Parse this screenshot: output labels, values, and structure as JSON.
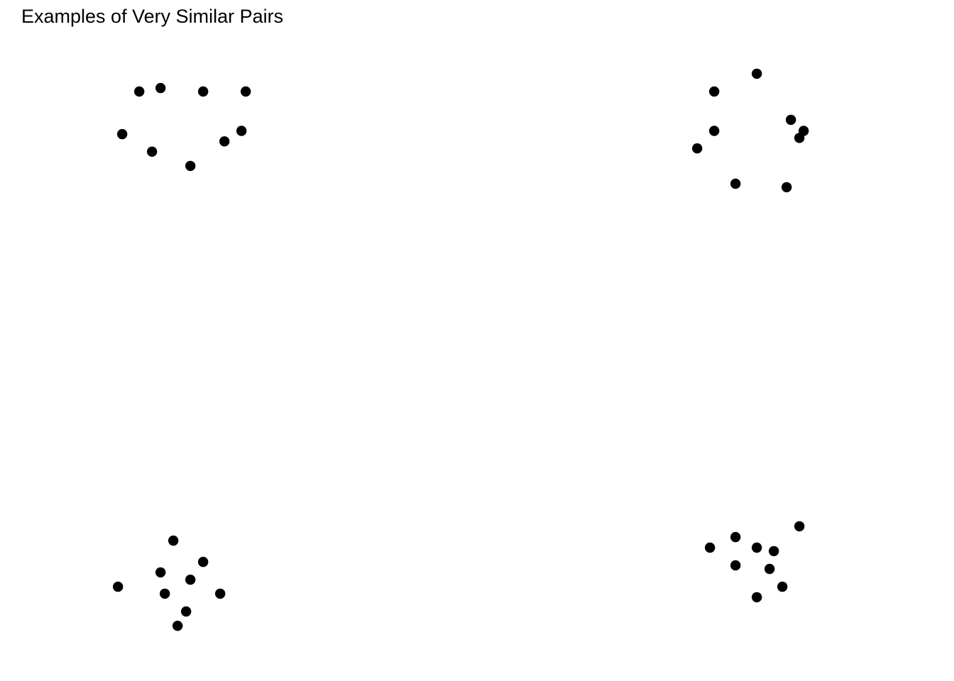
{
  "figure": {
    "title": "Examples of Very Similar Pairs"
  },
  "colors": {
    "background": "#ffffff",
    "point": "#000000",
    "text": "#000000"
  },
  "chart_data": [
    {
      "type": "scatter",
      "panel": "top-left",
      "grid": false,
      "axes_visible": false,
      "xlim": [
        0,
        100
      ],
      "ylim": [
        0,
        100
      ],
      "points": [
        {
          "x": 32.7,
          "y": 87.1
        },
        {
          "x": 37.7,
          "y": 88.4
        },
        {
          "x": 47.7,
          "y": 87.1
        },
        {
          "x": 57.7,
          "y": 87.1
        },
        {
          "x": 28.7,
          "y": 71.3
        },
        {
          "x": 56.7,
          "y": 72.5
        },
        {
          "x": 52.7,
          "y": 68.6
        },
        {
          "x": 35.7,
          "y": 64.8
        },
        {
          "x": 44.7,
          "y": 59.5
        }
      ]
    },
    {
      "type": "scatter",
      "panel": "top-right",
      "grid": false,
      "axes_visible": false,
      "xlim": [
        0,
        100
      ],
      "ylim": [
        0,
        100
      ],
      "points": [
        {
          "x": 53.7,
          "y": 93.7
        },
        {
          "x": 43.7,
          "y": 87.1
        },
        {
          "x": 61.7,
          "y": 76.6
        },
        {
          "x": 43.7,
          "y": 72.5
        },
        {
          "x": 64.7,
          "y": 72.5
        },
        {
          "x": 63.7,
          "y": 69.9
        },
        {
          "x": 39.7,
          "y": 66.0
        },
        {
          "x": 48.7,
          "y": 52.9
        },
        {
          "x": 60.7,
          "y": 51.6
        }
      ]
    },
    {
      "type": "scatter",
      "panel": "bottom-left",
      "grid": false,
      "axes_visible": false,
      "xlim": [
        0,
        100
      ],
      "ylim": [
        0,
        100
      ],
      "points": [
        {
          "x": 40.7,
          "y": 38.4
        },
        {
          "x": 47.7,
          "y": 30.5
        },
        {
          "x": 37.7,
          "y": 26.6
        },
        {
          "x": 44.7,
          "y": 23.9
        },
        {
          "x": 27.7,
          "y": 21.3
        },
        {
          "x": 38.7,
          "y": 18.7
        },
        {
          "x": 51.7,
          "y": 18.7
        },
        {
          "x": 43.7,
          "y": 12.1
        },
        {
          "x": 41.7,
          "y": 6.8
        }
      ]
    },
    {
      "type": "scatter",
      "panel": "bottom-right",
      "grid": false,
      "axes_visible": false,
      "xlim": [
        0,
        100
      ],
      "ylim": [
        0,
        100
      ],
      "points": [
        {
          "x": 63.7,
          "y": 43.7
        },
        {
          "x": 48.7,
          "y": 39.7
        },
        {
          "x": 42.7,
          "y": 35.8
        },
        {
          "x": 53.7,
          "y": 35.8
        },
        {
          "x": 57.7,
          "y": 34.5
        },
        {
          "x": 48.7,
          "y": 29.2
        },
        {
          "x": 56.7,
          "y": 27.9
        },
        {
          "x": 59.7,
          "y": 21.3
        },
        {
          "x": 53.7,
          "y": 17.4
        }
      ]
    }
  ]
}
